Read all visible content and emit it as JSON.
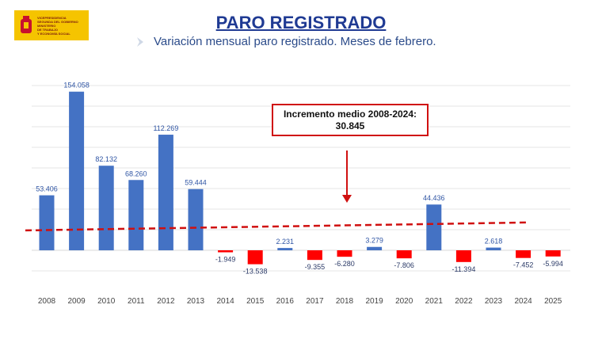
{
  "header": {
    "logo_lines": [
      "VICEPRESIDENCIA",
      "SEGUNDA DEL GOBIERNO",
      "MINISTERIO",
      "DE TRABAJO",
      "Y ECONOMÍA SOCIAL"
    ],
    "title": "PARO REGISTRADO",
    "subtitle": "Variación mensual paro registrado. Meses de febrero."
  },
  "annotation": {
    "line1": "Incremento medio 2008-2024:",
    "line2": "30.845"
  },
  "colors": {
    "positive": "#4472c4",
    "negative": "#ff0000",
    "average_line": "#d01010",
    "title": "#1f3a93"
  },
  "chart_data": {
    "type": "bar",
    "categories": [
      "2008",
      "2009",
      "2010",
      "2011",
      "2012",
      "2013",
      "2014",
      "2015",
      "2016",
      "2017",
      "2018",
      "2019",
      "2020",
      "2021",
      "2022",
      "2023",
      "2024",
      "2025"
    ],
    "values": [
      53406,
      154058,
      82132,
      68260,
      112269,
      59444,
      -1949,
      -13538,
      2231,
      -9355,
      -6280,
      3279,
      -7806,
      44436,
      -11394,
      2618,
      -7452,
      -5994
    ],
    "labels": [
      "53.406",
      "154.058",
      "82.132",
      "68.260",
      "112.269",
      "59.444",
      "-1.949",
      "-13.538",
      "2.231",
      "-9.355",
      "-6.280",
      "3.279",
      "-7.806",
      "44.436",
      "-11.394",
      "2.618",
      "-7.452",
      "-5.994"
    ],
    "average": 30845,
    "title": "",
    "xlabel": "",
    "ylabel": "",
    "ylim": [
      -20000,
      160000
    ],
    "grid": true
  }
}
